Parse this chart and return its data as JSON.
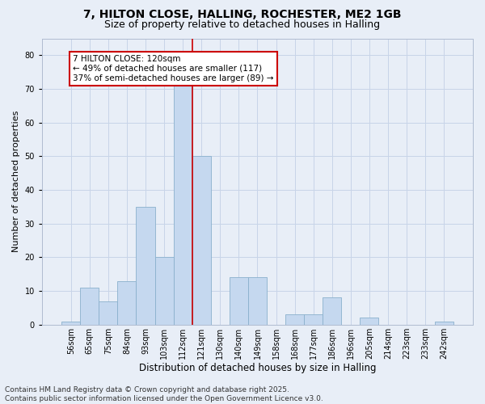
{
  "title1": "7, HILTON CLOSE, HALLING, ROCHESTER, ME2 1GB",
  "title2": "Size of property relative to detached houses in Halling",
  "xlabel": "Distribution of detached houses by size in Halling",
  "ylabel": "Number of detached properties",
  "categories": [
    "56sqm",
    "65sqm",
    "75sqm",
    "84sqm",
    "93sqm",
    "103sqm",
    "112sqm",
    "121sqm",
    "130sqm",
    "140sqm",
    "149sqm",
    "158sqm",
    "168sqm",
    "177sqm",
    "186sqm",
    "196sqm",
    "205sqm",
    "214sqm",
    "223sqm",
    "233sqm",
    "242sqm"
  ],
  "values": [
    1,
    11,
    7,
    13,
    35,
    20,
    72,
    50,
    0,
    14,
    14,
    0,
    3,
    3,
    8,
    0,
    2,
    0,
    0,
    0,
    1
  ],
  "bar_color": "#c5d8ef",
  "bar_edge_color": "#8ab0cc",
  "vline_x": 6.5,
  "vline_color": "#cc0000",
  "annotation_text": "7 HILTON CLOSE: 120sqm\n← 49% of detached houses are smaller (117)\n37% of semi-detached houses are larger (89) →",
  "ylim": [
    0,
    85
  ],
  "yticks": [
    0,
    10,
    20,
    30,
    40,
    50,
    60,
    70,
    80
  ],
  "background_color": "#e8eef7",
  "grid_color": "#c8d4e8",
  "footer_text": "Contains HM Land Registry data © Crown copyright and database right 2025.\nContains public sector information licensed under the Open Government Licence v3.0.",
  "title1_fontsize": 10,
  "title2_fontsize": 9,
  "xlabel_fontsize": 8.5,
  "ylabel_fontsize": 8,
  "tick_fontsize": 7,
  "annot_fontsize": 7.5,
  "footer_fontsize": 6.5
}
